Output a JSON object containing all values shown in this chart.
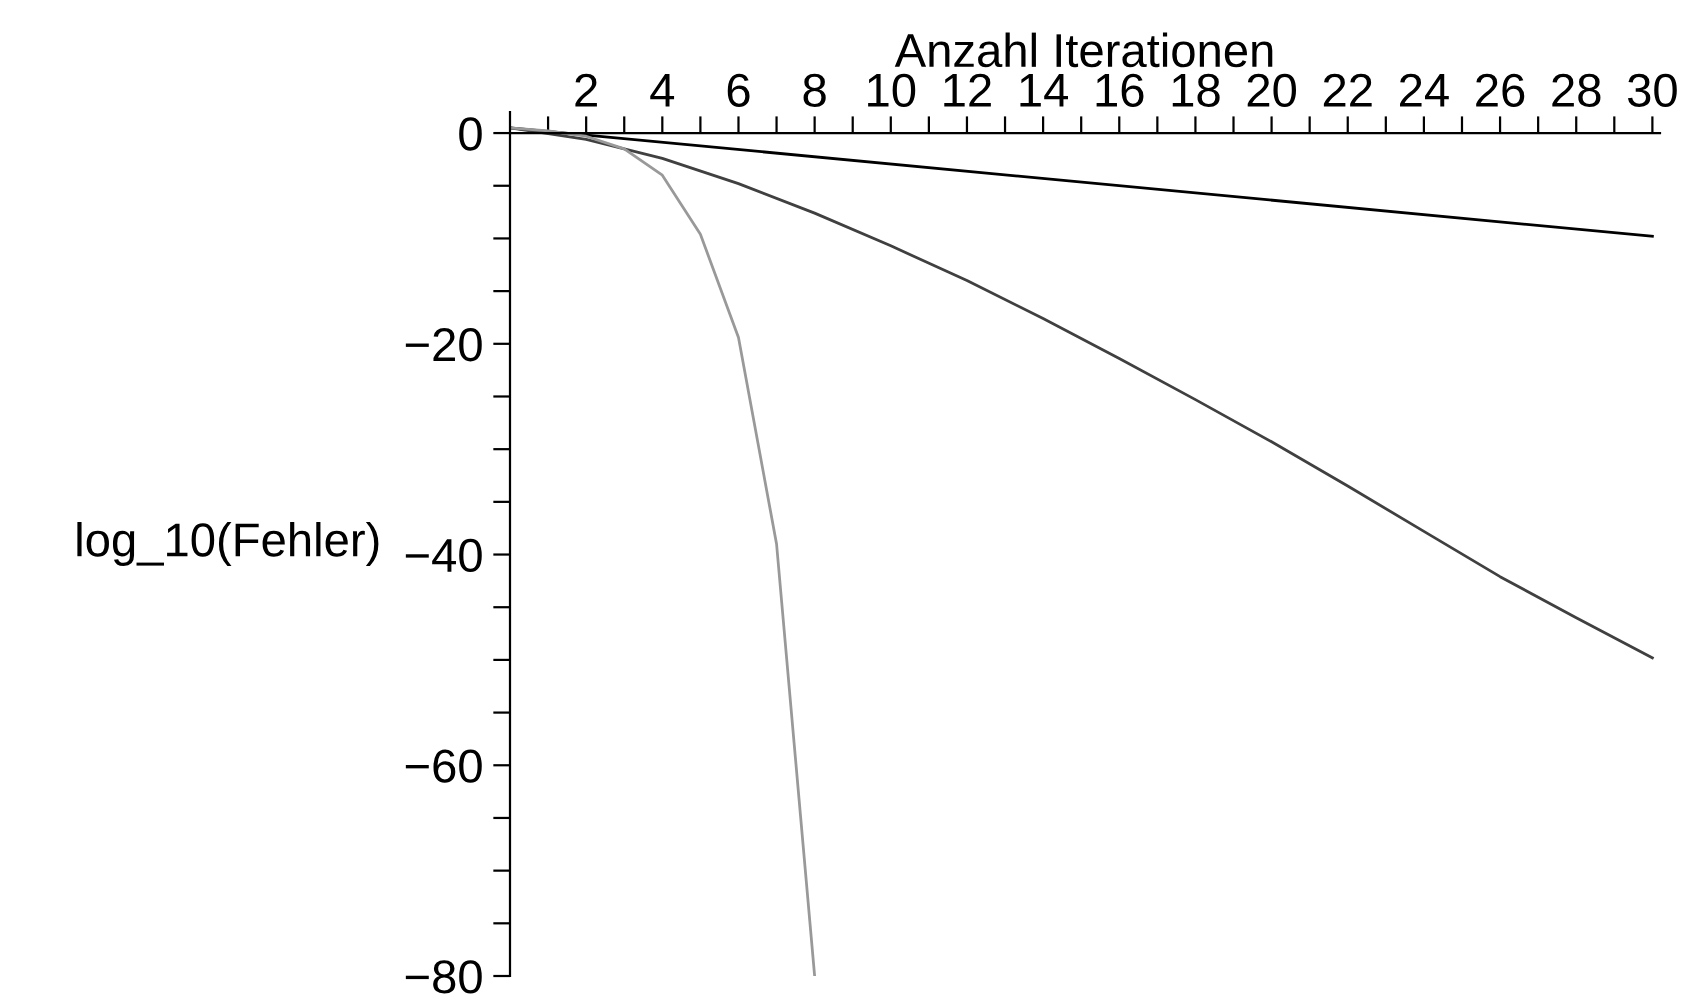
{
  "chart_data": {
    "type": "line",
    "xlabel": "Anzahl Iterationen",
    "ylabel": "log_10(Fehler)",
    "xlim": [
      0,
      30.2
    ],
    "ylim": [
      -80,
      2
    ],
    "xticks": [
      {
        "value": 1,
        "label": null
      },
      2,
      {
        "value": 3,
        "label": null
      },
      4,
      {
        "value": 5,
        "label": null
      },
      6,
      {
        "value": 7,
        "label": null
      },
      8,
      {
        "value": 9,
        "label": null
      },
      10,
      {
        "value": 11,
        "label": null
      },
      12,
      {
        "value": 13,
        "label": null
      },
      14,
      {
        "value": 15,
        "label": null
      },
      16,
      {
        "value": 17,
        "label": null
      },
      18,
      {
        "value": 19,
        "label": null
      },
      20,
      {
        "value": 21,
        "label": null
      },
      22,
      {
        "value": 23,
        "label": null
      },
      24,
      {
        "value": 25,
        "label": null
      },
      26,
      {
        "value": 27,
        "label": null
      },
      28,
      {
        "value": 29,
        "label": null
      },
      30
    ],
    "yticks": [
      {
        "value": -80,
        "label": "−80"
      },
      {
        "value": -75,
        "label": null
      },
      {
        "value": -70,
        "label": null
      },
      {
        "value": -65,
        "label": null
      },
      {
        "value": -60,
        "label": "−60"
      },
      {
        "value": -55,
        "label": null
      },
      {
        "value": -50,
        "label": null
      },
      {
        "value": -45,
        "label": null
      },
      {
        "value": -40,
        "label": "−40"
      },
      {
        "value": -35,
        "label": null
      },
      {
        "value": -30,
        "label": null
      },
      {
        "value": -25,
        "label": null
      },
      {
        "value": -20,
        "label": "−20"
      },
      {
        "value": -15,
        "label": null
      },
      {
        "value": -10,
        "label": null
      },
      {
        "value": -5,
        "label": null
      },
      0
    ],
    "grid": false,
    "legend": false,
    "marker": "none",
    "line_style": "solid",
    "series": [
      {
        "color": "#000000",
        "x": [
          0,
          30
        ],
        "values": [
          0.5,
          -9.8
        ]
      },
      {
        "color": "#404040",
        "x": [
          0,
          2,
          4,
          6,
          8,
          10,
          12,
          14,
          16,
          18,
          20,
          22,
          24,
          26,
          28,
          30
        ],
        "values": [
          0.5,
          -0.6,
          -2.4,
          -4.8,
          -7.6,
          -10.7,
          -14,
          -17.6,
          -21.4,
          -25.3,
          -29.3,
          -33.5,
          -37.8,
          -42.1,
          -46,
          -49.8
        ]
      },
      {
        "color": "#999999",
        "x": [
          0,
          1,
          2,
          3,
          4,
          5,
          6,
          7,
          8
        ],
        "values": [
          0.5,
          0.2,
          -0.3,
          -1.5,
          -4,
          -9.6,
          -19.4,
          -39,
          -80
        ]
      }
    ]
  }
}
